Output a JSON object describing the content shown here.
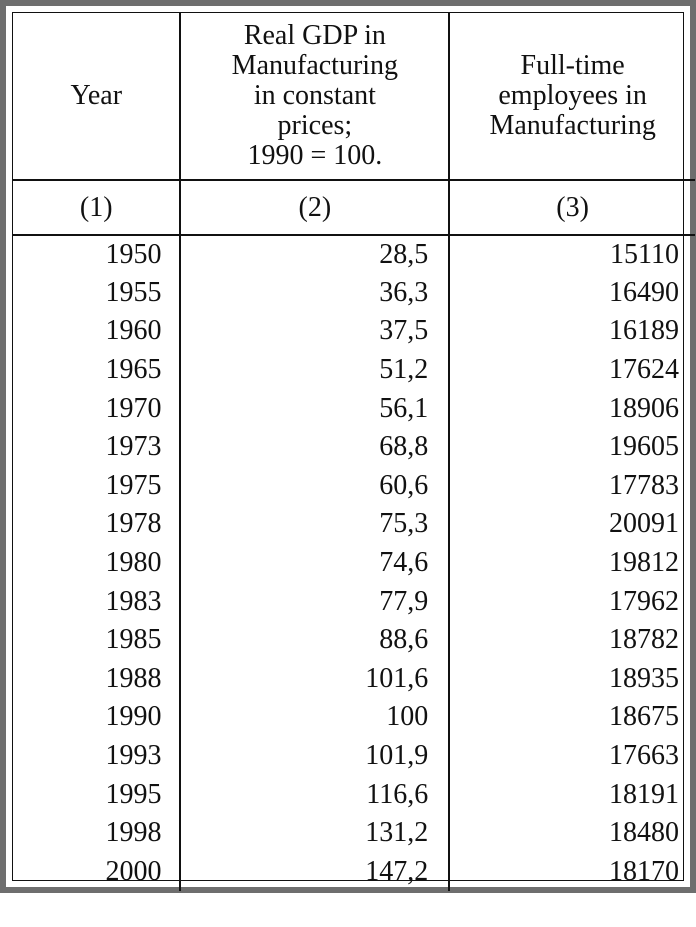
{
  "table": {
    "headers": [
      "Year",
      "Real GDP in\nManufacturing\nin constant\nprices;\n1990 = 100.",
      "Full-time\nemployees in\nManufacturing"
    ],
    "column_numbers": [
      "(1)",
      "(2)",
      "(3)"
    ],
    "rows": [
      [
        "1950",
        "28,5",
        "15110"
      ],
      [
        "1955",
        "36,3",
        "16490"
      ],
      [
        "1960",
        "37,5",
        "16189"
      ],
      [
        "1965",
        "51,2",
        "17624"
      ],
      [
        "1970",
        "56,1",
        "18906"
      ],
      [
        "1973",
        "68,8",
        "19605"
      ],
      [
        "1975",
        "60,6",
        "17783"
      ],
      [
        "1978",
        "75,3",
        "20091"
      ],
      [
        "1980",
        "74,6",
        "19812"
      ],
      [
        "1983",
        "77,9",
        "17962"
      ],
      [
        "1985",
        "88,6",
        "18782"
      ],
      [
        "1988",
        "101,6",
        "18935"
      ],
      [
        "1990",
        "100",
        "18675"
      ],
      [
        "1993",
        "101,9",
        "17663"
      ],
      [
        "1995",
        "116,6",
        "18191"
      ],
      [
        "1998",
        "131,2",
        "18480"
      ],
      [
        "2000",
        "147,2",
        "18170"
      ]
    ]
  }
}
